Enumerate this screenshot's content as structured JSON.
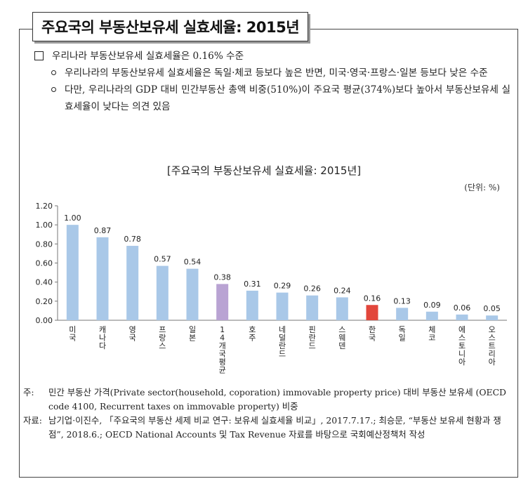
{
  "title": "주요국의 부동산보유세 실효세율: 2015년",
  "bullets": {
    "main": "우리나라 부동산보유세 실효세율은 0.16% 수준",
    "sub": [
      "우리나라의 부동산보유세 실효세율은 독일·체코 등보다 높은 반면, 미국·영국·프랑스·일본 등보다 낮은 수준",
      "다만, 우리나라의 GDP 대비 민간부동산 총액 비중(510%)이 주요국 평균(374%)보다 높아서 부동산보유세 실효세율이 낮다는 의견 있음"
    ]
  },
  "chart_title": "[주요국의 부동산보유세 실효세율: 2015년]",
  "unit": "(단위: %)",
  "chart_data": {
    "type": "bar",
    "title": "[주요국의 부동산보유세 실효세율: 2015년]",
    "categories": [
      "미국",
      "캐나다",
      "영국",
      "프랑스",
      "일본",
      "14개국평균",
      "호주",
      "네덜란드",
      "핀란드",
      "스웨덴",
      "한국",
      "독일",
      "체코",
      "에스토니아",
      "오스트리아"
    ],
    "values": [
      1.0,
      0.87,
      0.78,
      0.57,
      0.54,
      0.38,
      0.31,
      0.29,
      0.26,
      0.24,
      0.16,
      0.13,
      0.09,
      0.06,
      0.05
    ],
    "value_labels": [
      "1.00",
      "0.87",
      "0.78",
      "0.57",
      "0.54",
      "0.38",
      "0.31",
      "0.29",
      "0.26",
      "0.24",
      "0.16",
      "0.13",
      "0.09",
      "0.06",
      "0.05"
    ],
    "y_ticks": [
      "0.00",
      "0.20",
      "0.40",
      "0.60",
      "0.80",
      "1.00",
      "1.20"
    ],
    "ylim": [
      0,
      1.2
    ],
    "colors": {
      "default": "#a9c8e8",
      "highlight_avg": "#b9a3d3",
      "highlight_korea": "#e2463b",
      "axis": "#777777"
    },
    "highlight": {
      "14개국평균": "highlight_avg",
      "한국": "highlight_korea"
    },
    "ylabel": "",
    "xlabel": ""
  },
  "notes": {
    "note_label": "주:",
    "note_text": "민간 부동산 가격(Private sector(household, coporation) immovable property price) 대비 부동산 보유세 (OECD code 4100, Recurrent taxes on immovable property) 비중",
    "source_label": "자료:",
    "source_text": "남기업·이진수, 「주요국의 부동산 세제 비교 연구: 보유세 실효세율 비교」, 2017.7.17.; 최승문, “부동산 보유세 현황과 쟁점”, 2018.6.; OECD National Accounts 및 Tax Revenue 자료를 바탕으로 국회예산정책처 작성"
  }
}
